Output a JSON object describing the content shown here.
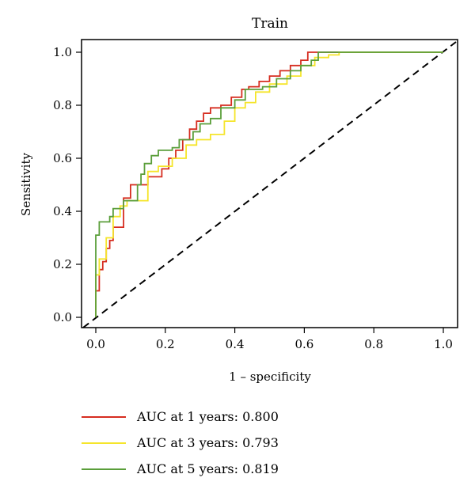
{
  "chart_data": {
    "type": "line",
    "title": "Train",
    "xlabel": "1 – specificity",
    "ylabel": "Sensitivity",
    "xlim": [
      0,
      1
    ],
    "ylim": [
      0,
      1
    ],
    "xticks": [
      "0.0",
      "0.2",
      "0.4",
      "0.6",
      "0.8",
      "1.0"
    ],
    "yticks": [
      "0.0",
      "0.2",
      "0.4",
      "0.6",
      "0.8",
      "1.0"
    ],
    "grid": false,
    "legend_position": "bottom-left",
    "reference_line": {
      "x": [
        0,
        1
      ],
      "y": [
        0,
        1
      ],
      "style": "dashed",
      "color": "#000000"
    },
    "series": [
      {
        "name": "AUC at 1 years: 0.800",
        "color": "#d62d20",
        "x": [
          0,
          0,
          0.01,
          0.01,
          0.02,
          0.02,
          0.03,
          0.03,
          0.04,
          0.04,
          0.05,
          0.05,
          0.08,
          0.08,
          0.1,
          0.1,
          0.15,
          0.15,
          0.19,
          0.19,
          0.21,
          0.21,
          0.23,
          0.23,
          0.25,
          0.25,
          0.27,
          0.27,
          0.29,
          0.29,
          0.31,
          0.31,
          0.33,
          0.33,
          0.36,
          0.36,
          0.39,
          0.39,
          0.42,
          0.42,
          0.44,
          0.44,
          0.47,
          0.47,
          0.5,
          0.5,
          0.53,
          0.53,
          0.56,
          0.56,
          0.59,
          0.59,
          0.61,
          0.61,
          0.64,
          0.64,
          1.0
        ],
        "y": [
          0,
          0.1,
          0.1,
          0.18,
          0.18,
          0.21,
          0.21,
          0.26,
          0.26,
          0.29,
          0.29,
          0.34,
          0.34,
          0.45,
          0.45,
          0.5,
          0.5,
          0.53,
          0.53,
          0.56,
          0.56,
          0.6,
          0.6,
          0.63,
          0.63,
          0.67,
          0.67,
          0.71,
          0.71,
          0.74,
          0.74,
          0.77,
          0.77,
          0.79,
          0.79,
          0.8,
          0.8,
          0.83,
          0.83,
          0.86,
          0.86,
          0.87,
          0.87,
          0.89,
          0.89,
          0.91,
          0.91,
          0.93,
          0.93,
          0.95,
          0.95,
          0.97,
          0.97,
          1.0,
          1.0,
          1.0,
          1.0
        ]
      },
      {
        "name": "AUC at 3 years: 0.793",
        "color": "#f5e52a",
        "x": [
          0,
          0,
          0.01,
          0.01,
          0.03,
          0.03,
          0.05,
          0.05,
          0.07,
          0.07,
          0.09,
          0.09,
          0.15,
          0.15,
          0.18,
          0.18,
          0.22,
          0.22,
          0.26,
          0.26,
          0.29,
          0.29,
          0.33,
          0.33,
          0.37,
          0.37,
          0.4,
          0.4,
          0.43,
          0.43,
          0.46,
          0.46,
          0.5,
          0.5,
          0.55,
          0.55,
          0.59,
          0.59,
          0.63,
          0.63,
          0.67,
          0.67,
          0.7,
          0.7,
          1.0
        ],
        "y": [
          0,
          0.16,
          0.16,
          0.22,
          0.22,
          0.3,
          0.3,
          0.38,
          0.38,
          0.42,
          0.42,
          0.44,
          0.44,
          0.55,
          0.55,
          0.57,
          0.57,
          0.6,
          0.6,
          0.65,
          0.65,
          0.67,
          0.67,
          0.69,
          0.69,
          0.74,
          0.74,
          0.79,
          0.79,
          0.81,
          0.81,
          0.85,
          0.85,
          0.88,
          0.88,
          0.91,
          0.91,
          0.95,
          0.95,
          0.98,
          0.98,
          0.99,
          0.99,
          1.0,
          1.0
        ]
      },
      {
        "name": "AUC at 5 years: 0.819",
        "color": "#5a9e3a",
        "x": [
          0,
          0,
          0.01,
          0.01,
          0.04,
          0.04,
          0.05,
          0.05,
          0.08,
          0.08,
          0.12,
          0.12,
          0.13,
          0.13,
          0.14,
          0.14,
          0.16,
          0.16,
          0.18,
          0.18,
          0.22,
          0.22,
          0.24,
          0.24,
          0.28,
          0.28,
          0.3,
          0.3,
          0.33,
          0.33,
          0.36,
          0.36,
          0.4,
          0.4,
          0.43,
          0.43,
          0.48,
          0.48,
          0.52,
          0.52,
          0.56,
          0.56,
          0.59,
          0.59,
          0.62,
          0.62,
          0.64,
          0.64,
          1.0
        ],
        "y": [
          0,
          0.31,
          0.31,
          0.36,
          0.36,
          0.38,
          0.38,
          0.41,
          0.41,
          0.44,
          0.44,
          0.5,
          0.5,
          0.54,
          0.54,
          0.58,
          0.58,
          0.61,
          0.61,
          0.63,
          0.63,
          0.64,
          0.64,
          0.67,
          0.67,
          0.7,
          0.7,
          0.73,
          0.73,
          0.75,
          0.75,
          0.79,
          0.79,
          0.82,
          0.82,
          0.86,
          0.86,
          0.87,
          0.87,
          0.9,
          0.9,
          0.93,
          0.93,
          0.95,
          0.95,
          0.97,
          0.97,
          1.0,
          1.0
        ]
      }
    ]
  }
}
